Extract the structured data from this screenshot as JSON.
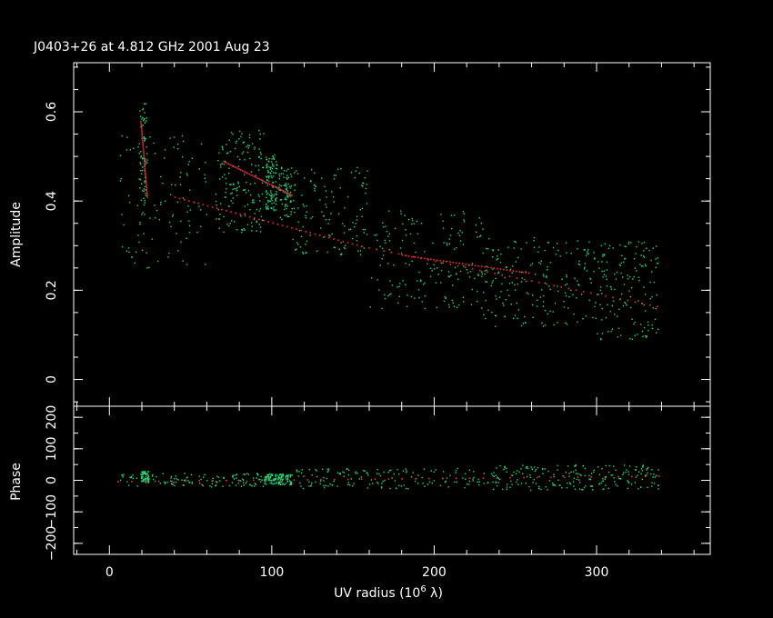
{
  "chart_data": [
    {
      "type": "scatter",
      "panel": "amplitude",
      "title": "J0403+26 at 4.812 GHz 2001 Aug 23",
      "ylabel": "Amplitude",
      "xlim": [
        -22,
        370
      ],
      "ylim": [
        -0.06,
        0.71
      ],
      "yticks": [
        0,
        0.2,
        0.4,
        0.6
      ],
      "ytick_labels": [
        "0",
        "0.2",
        "0.4",
        "0.6"
      ],
      "colors": {
        "data": "#22dd77",
        "model": "#ff2a2a"
      },
      "clusters": [
        {
          "x": [
            18,
            23
          ],
          "y": [
            0.37,
            0.62
          ],
          "n": 70
        },
        {
          "x": [
            5,
            60
          ],
          "y": [
            0.25,
            0.55
          ],
          "n": 110
        },
        {
          "x": [
            65,
            95
          ],
          "y": [
            0.33,
            0.56
          ],
          "n": 160
        },
        {
          "x": [
            96,
            103
          ],
          "y": [
            0.38,
            0.51
          ],
          "n": 110
        },
        {
          "x": [
            104,
            112
          ],
          "y": [
            0.36,
            0.48
          ],
          "n": 70
        },
        {
          "x": [
            112,
            160
          ],
          "y": [
            0.28,
            0.48
          ],
          "n": 130
        },
        {
          "x": [
            160,
            230
          ],
          "y": [
            0.16,
            0.38
          ],
          "n": 170
        },
        {
          "x": [
            230,
            300
          ],
          "y": [
            0.12,
            0.32
          ],
          "n": 190
        },
        {
          "x": [
            300,
            338
          ],
          "y": [
            0.09,
            0.31
          ],
          "n": 150
        }
      ],
      "model_lines": [
        {
          "x": [
            19,
            23
          ],
          "y": [
            0.58,
            0.41
          ]
        },
        {
          "x": [
            40,
            155
          ],
          "y": [
            0.41,
            0.3
          ]
        },
        {
          "x": [
            155,
            337
          ],
          "y": [
            0.3,
            0.165
          ]
        },
        {
          "x": [
            180,
            258
          ],
          "y": [
            0.28,
            0.24
          ]
        },
        {
          "x": [
            70,
            112
          ],
          "y": [
            0.49,
            0.415
          ]
        }
      ]
    },
    {
      "type": "scatter",
      "panel": "phase",
      "xlabel": "UV radius  (10",
      "xlabel_sup": "6",
      "xlabel_tail": " λ)",
      "ylabel": "Phase",
      "xlim": [
        -22,
        370
      ],
      "ylim": [
        -235,
        235
      ],
      "xticks": [
        0,
        100,
        200,
        300
      ],
      "xtick_labels": [
        "0",
        "100",
        "200",
        "300"
      ],
      "yticks": [
        -200,
        -100,
        0,
        100,
        200
      ],
      "ytick_labels": [
        "−200",
        "−100",
        "0",
        "100",
        "200"
      ],
      "colors": {
        "data": "#22dd77",
        "model": "#ff2a2a"
      },
      "clusters": [
        {
          "x": [
            19,
            24
          ],
          "y": [
            -5,
            30
          ],
          "n": 60
        },
        {
          "x": [
            5,
            95
          ],
          "y": [
            -20,
            25
          ],
          "n": 120
        },
        {
          "x": [
            95,
            112
          ],
          "y": [
            -12,
            22
          ],
          "n": 130
        },
        {
          "x": [
            112,
            230
          ],
          "y": [
            -25,
            40
          ],
          "n": 150
        },
        {
          "x": [
            230,
            338
          ],
          "y": [
            -30,
            50
          ],
          "n": 220
        }
      ],
      "model_lines": [
        {
          "x": [
            5,
            338
          ],
          "y": [
            -2,
            15
          ]
        }
      ]
    }
  ]
}
